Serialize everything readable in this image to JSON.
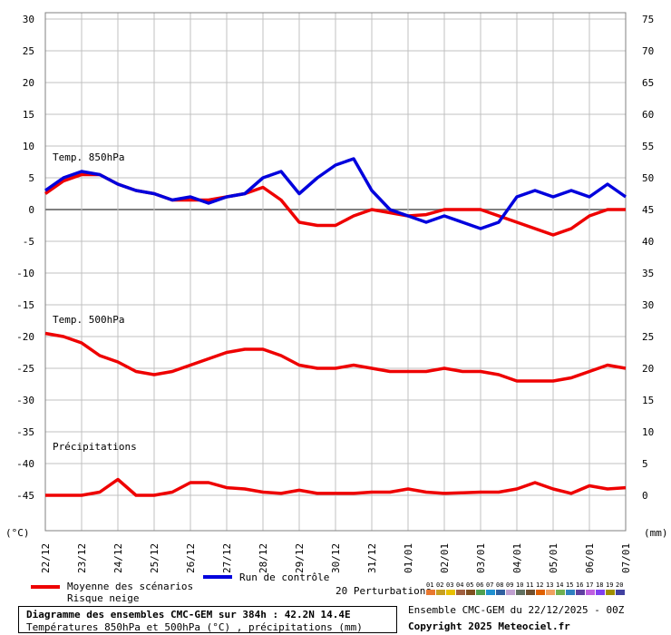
{
  "chart_data": {
    "type": "line",
    "title": "Diagramme des ensembles CMC-GEM sur 384h : 42.2N 14.4E",
    "subtitle": "Températures 850hPa et 500hPa (°C) , précipitations (mm)",
    "left_axis": {
      "unit_label": "(°C)",
      "ticks": [
        30,
        25,
        20,
        15,
        10,
        5,
        0,
        -5,
        -10,
        -15,
        -20,
        -25,
        -30,
        -35,
        -40,
        -45
      ],
      "ylim": [
        -48,
        32
      ]
    },
    "right_axis": {
      "unit_label": "(mm)",
      "ticks": [
        75,
        70,
        65,
        60,
        55,
        50,
        45,
        40,
        35,
        30,
        25,
        20,
        15,
        10,
        5,
        0
      ]
    },
    "x_tick_labels": [
      "22/12",
      "23/12",
      "24/12",
      "25/12",
      "26/12",
      "27/12",
      "28/12",
      "29/12",
      "30/12",
      "31/12",
      "01/01",
      "02/01",
      "03/01",
      "04/01",
      "05/01",
      "06/01",
      "07/01"
    ],
    "panel_labels": {
      "t850": "Temp. 850hPa",
      "t500": "Temp. 500hPa",
      "precip": "Précipitations"
    },
    "series": [
      {
        "name": "Moyenne des scénarios",
        "color": "#ee0000",
        "panel": "t850",
        "x": [
          0,
          0.5,
          1,
          1.5,
          2,
          2.5,
          3,
          3.5,
          4,
          4.5,
          5,
          5.5,
          6,
          6.5,
          7,
          7.5,
          8,
          8.5,
          9,
          9.5,
          10,
          10.5,
          11,
          11.5,
          12,
          12.5,
          13,
          13.5,
          14,
          14.5,
          15,
          15.5,
          16
        ],
        "values": [
          2.5,
          4.5,
          5.5,
          5.5,
          4,
          3,
          2.5,
          1.5,
          1.5,
          1.5,
          2,
          2.5,
          3.5,
          1.5,
          -2,
          -2.5,
          -2.5,
          -1,
          0,
          -0.5,
          -1,
          -0.8,
          0,
          0,
          0,
          -1,
          -2,
          -3,
          -4,
          -3,
          -1,
          0,
          0
        ]
      },
      {
        "name": "Run de contrôle",
        "color": "#0000dd",
        "panel": "t850",
        "x": [
          0,
          0.5,
          1,
          1.5,
          2,
          2.5,
          3,
          3.5,
          4,
          4.5,
          5,
          5.5,
          6,
          6.5,
          7,
          7.5,
          8,
          8.5,
          9,
          9.5,
          10,
          10.5,
          11,
          11.5,
          12,
          12.5,
          13,
          13.5,
          14,
          14.5,
          15,
          15.5,
          16
        ],
        "values": [
          3,
          5,
          6,
          5.5,
          4,
          3,
          2.5,
          1.5,
          2,
          1,
          2,
          2.5,
          5,
          6,
          2.5,
          5,
          7,
          8,
          3,
          0,
          -1,
          -2,
          -1,
          -2,
          -3,
          -2,
          2,
          3,
          2,
          3,
          2,
          4,
          2
        ]
      },
      {
        "name": "Moyenne des scénarios",
        "color": "#ee0000",
        "panel": "t500",
        "x": [
          0,
          0.5,
          1,
          1.5,
          2,
          2.5,
          3,
          3.5,
          4,
          4.5,
          5,
          5.5,
          6,
          6.5,
          7,
          7.5,
          8,
          8.5,
          9,
          9.5,
          10,
          10.5,
          11,
          11.5,
          12,
          12.5,
          13,
          13.5,
          14,
          14.5,
          15,
          15.5,
          16
        ],
        "values": [
          -19.5,
          -20,
          -21,
          -23,
          -24,
          -25.5,
          -26,
          -25.5,
          -24.5,
          -23.5,
          -22.5,
          -22,
          -22,
          -23,
          -24.5,
          -25,
          -25,
          -24.5,
          -25,
          -25.5,
          -25.5,
          -25.5,
          -25,
          -25.5,
          -25.5,
          -26,
          -27,
          -27,
          -27,
          -26.5,
          -25.5,
          -24.5,
          -25
        ]
      },
      {
        "name": "Moyenne des scénarios",
        "color": "#ee0000",
        "panel": "precip",
        "x": [
          0,
          0.5,
          1,
          1.5,
          2,
          2.5,
          3,
          3.5,
          4,
          4.5,
          5,
          5.5,
          6,
          6.5,
          7,
          7.5,
          8,
          8.5,
          9,
          9.5,
          10,
          10.5,
          11,
          11.5,
          12,
          12.5,
          13,
          13.5,
          14,
          14.5,
          15,
          15.5,
          16
        ],
        "values": [
          0,
          0,
          0,
          0.5,
          2.5,
          0,
          0,
          0.5,
          2,
          2,
          1.2,
          1,
          0.5,
          0.3,
          0.8,
          0.3,
          0.3,
          0.3,
          0.5,
          0.5,
          1,
          0.5,
          0.3,
          0.4,
          0.5,
          0.5,
          1,
          2,
          1,
          0.3,
          1.5,
          1,
          1.2
        ]
      }
    ],
    "perturbations": {
      "count": 20,
      "labels": [
        "01",
        "02",
        "03",
        "04",
        "05",
        "06",
        "07",
        "08",
        "09",
        "10",
        "11",
        "12",
        "13",
        "14",
        "15",
        "16",
        "17",
        "18",
        "19",
        "20"
      ],
      "colors": [
        "#e87830",
        "#c8a020",
        "#e8c000",
        "#a06040",
        "#805020",
        "#50a050",
        "#2090d0",
        "#3060a0",
        "#c0a0d0",
        "#607060",
        "#705030",
        "#e06000",
        "#f0a060",
        "#70b050",
        "#3080c0",
        "#6040a0",
        "#c060e0",
        "#8040f0",
        "#a09000",
        "#4040a0"
      ]
    }
  },
  "legend": {
    "mean_label": "Moyenne des scénarios",
    "snow_label": "Risque neige",
    "control_label": "Run de contrôle",
    "perturbations_label": "20 Perturbations"
  },
  "footer": {
    "ensemble_line": "Ensemble CMC-GEM du 22/12/2025 - 00Z",
    "copyright": "Copyright 2025 Meteociel.fr"
  },
  "colors": {
    "mean": "#ee0000",
    "control": "#0000dd",
    "grid": "#c0c0c0",
    "zero": "#808080"
  }
}
